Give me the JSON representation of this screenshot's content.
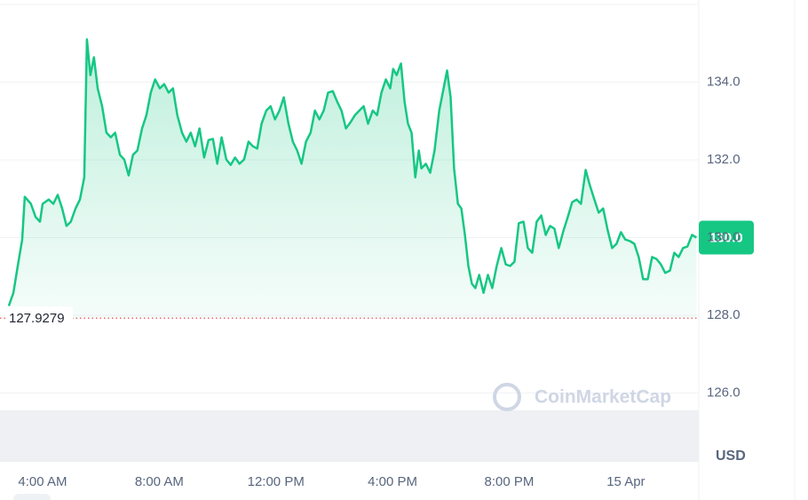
{
  "chart_data": {
    "type": "line",
    "color": "#16c784",
    "currency": "USD",
    "watermark": "CoinMarketCap",
    "reference": 127.9279,
    "current_price": {
      "value": 130.0,
      "label": "130.0"
    },
    "xlim": [
      2.54,
      26.5
    ],
    "ylim": [
      124.23,
      136.0
    ],
    "xticks": [
      {
        "value": 4,
        "label": "4:00 AM"
      },
      {
        "value": 8,
        "label": "8:00 AM"
      },
      {
        "value": 12,
        "label": "12:00 PM"
      },
      {
        "value": 16,
        "label": "4:00 PM"
      },
      {
        "value": 20,
        "label": "8:00 PM"
      },
      {
        "value": 24,
        "label": "15 Apr"
      }
    ],
    "yticks": [
      {
        "value": 126,
        "label": "126.0"
      },
      {
        "value": 128,
        "label": "128.0"
      },
      {
        "value": 130,
        "label": "130.0"
      },
      {
        "value": 132,
        "label": "132.0"
      },
      {
        "value": 134,
        "label": "134.0"
      }
    ],
    "grid": true,
    "x": [
      2.84,
      3.0,
      3.15,
      3.3,
      3.39,
      3.6,
      3.76,
      3.91,
      4.0,
      4.21,
      4.37,
      4.52,
      4.67,
      4.82,
      4.97,
      5.13,
      5.28,
      5.43,
      5.52,
      5.64,
      5.76,
      5.89,
      6.04,
      6.19,
      6.34,
      6.49,
      6.65,
      6.8,
      6.95,
      7.1,
      7.25,
      7.41,
      7.56,
      7.71,
      7.86,
      8.02,
      8.17,
      8.32,
      8.47,
      8.62,
      8.78,
      8.93,
      9.08,
      9.23,
      9.38,
      9.54,
      9.69,
      9.84,
      9.99,
      10.14,
      10.3,
      10.45,
      10.6,
      10.75,
      10.91,
      11.06,
      11.21,
      11.36,
      11.51,
      11.67,
      11.82,
      11.97,
      12.12,
      12.27,
      12.43,
      12.58,
      12.73,
      12.88,
      13.03,
      13.19,
      13.34,
      13.49,
      13.64,
      13.79,
      13.95,
      14.1,
      14.25,
      14.4,
      14.56,
      14.71,
      14.86,
      15.01,
      15.16,
      15.32,
      15.47,
      15.62,
      15.77,
      15.92,
      16.02,
      16.14,
      16.29,
      16.41,
      16.53,
      16.65,
      16.78,
      16.9,
      16.99,
      17.14,
      17.29,
      17.44,
      17.6,
      17.75,
      17.87,
      17.99,
      18.11,
      18.24,
      18.36,
      18.48,
      18.6,
      18.72,
      18.84,
      18.97,
      19.12,
      19.27,
      19.42,
      19.57,
      19.73,
      19.88,
      20.03,
      20.18,
      20.33,
      20.49,
      20.64,
      20.79,
      20.94,
      21.1,
      21.25,
      21.4,
      21.55,
      21.7,
      21.86,
      22.01,
      22.16,
      22.31,
      22.46,
      22.62,
      22.77,
      22.92,
      23.07,
      23.22,
      23.38,
      23.53,
      23.68,
      23.83,
      23.98,
      24.14,
      24.29,
      24.44,
      24.59,
      24.75,
      24.9,
      25.05,
      25.2,
      25.35,
      25.51,
      25.66,
      25.81,
      25.96,
      26.11,
      26.27,
      26.42
    ],
    "values": [
      128.24,
      128.58,
      129.27,
      129.95,
      131.05,
      130.87,
      130.53,
      130.41,
      130.87,
      130.98,
      130.87,
      131.1,
      130.75,
      130.3,
      130.41,
      130.75,
      130.98,
      131.55,
      135.1,
      134.18,
      134.64,
      133.84,
      133.38,
      132.7,
      132.58,
      132.7,
      132.13,
      132.01,
      131.6,
      132.13,
      132.24,
      132.81,
      133.15,
      133.73,
      134.07,
      133.84,
      133.95,
      133.73,
      133.84,
      133.15,
      132.7,
      132.47,
      132.7,
      132.35,
      132.81,
      132.06,
      132.51,
      132.54,
      131.9,
      132.58,
      132.01,
      131.87,
      132.06,
      131.9,
      132.01,
      132.47,
      132.35,
      132.29,
      132.93,
      133.27,
      133.38,
      133.04,
      133.27,
      133.61,
      132.93,
      132.47,
      132.24,
      131.9,
      132.47,
      132.7,
      133.27,
      133.04,
      133.27,
      133.73,
      133.77,
      133.5,
      133.27,
      132.81,
      132.97,
      133.15,
      133.27,
      133.38,
      132.93,
      133.27,
      133.15,
      133.73,
      134.07,
      133.84,
      134.34,
      134.18,
      134.48,
      133.5,
      132.93,
      132.7,
      131.55,
      132.24,
      131.78,
      131.9,
      131.67,
      132.24,
      133.27,
      133.84,
      134.3,
      133.61,
      131.78,
      130.87,
      130.75,
      130.07,
      129.27,
      128.81,
      128.7,
      129.04,
      128.58,
      129.04,
      128.7,
      129.27,
      129.73,
      129.31,
      129.27,
      129.38,
      130.37,
      130.41,
      129.73,
      129.61,
      130.41,
      130.57,
      130.07,
      130.3,
      130.23,
      129.73,
      130.18,
      130.53,
      130.91,
      130.98,
      130.87,
      131.74,
      131.33,
      130.98,
      130.64,
      130.75,
      130.18,
      129.73,
      129.84,
      130.14,
      129.95,
      129.91,
      129.84,
      129.5,
      128.93,
      128.93,
      129.5,
      129.45,
      129.31,
      129.09,
      129.15,
      129.61,
      129.5,
      129.73,
      129.77,
      130.07,
      130.0
    ]
  }
}
